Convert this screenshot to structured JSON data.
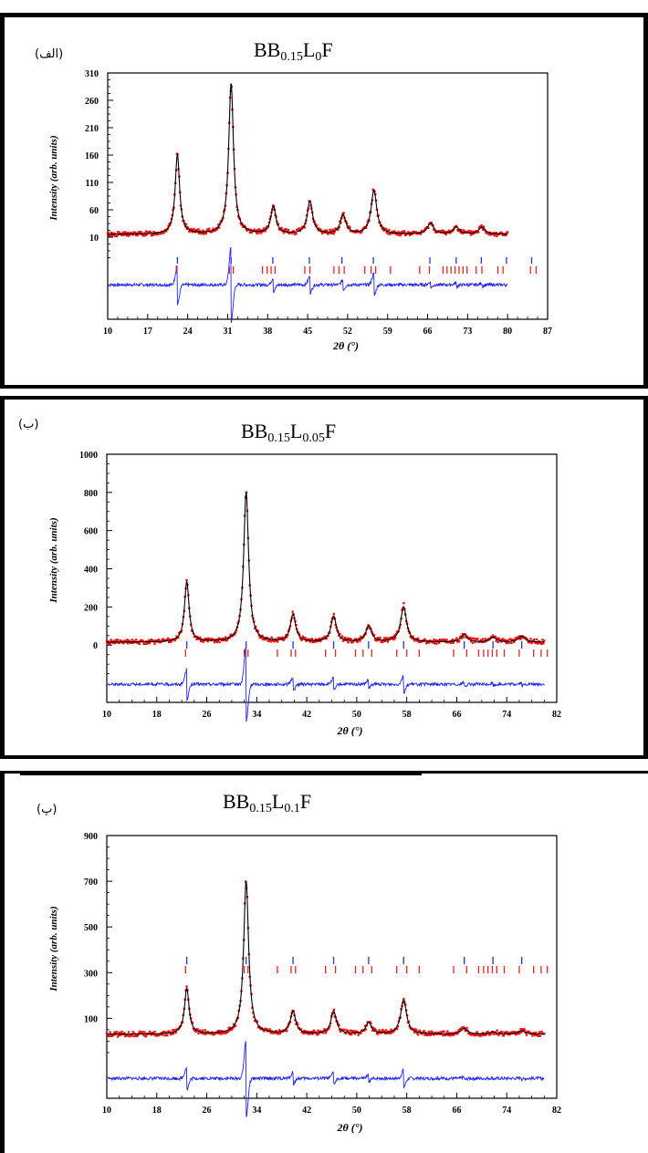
{
  "chart_data": [
    {
      "type": "scatter",
      "tag": "(الف)",
      "title": {
        "base": "BB",
        "s1": "0.15",
        "mid": "L",
        "s2": "0",
        "end": "F"
      },
      "ylabel": "Intensity (arb. units)",
      "xlabel": "2θ (°)",
      "xlim": [
        10,
        87
      ],
      "ylim": [
        -140,
        310
      ],
      "xticks": [
        10,
        17,
        24,
        31,
        38,
        45,
        52,
        59,
        66,
        73,
        80,
        87
      ],
      "yticks": [
        10,
        60,
        110,
        160,
        210,
        260,
        310
      ],
      "data_x_range": [
        10,
        80
      ],
      "background": 15,
      "peaks": [
        {
          "x": 22.2,
          "y": 160
        },
        {
          "x": 31.6,
          "y": 290
        },
        {
          "x": 39.0,
          "y": 65
        },
        {
          "x": 45.4,
          "y": 75
        },
        {
          "x": 51.2,
          "y": 50
        },
        {
          "x": 56.6,
          "y": 95
        },
        {
          "x": 66.5,
          "y": 35
        },
        {
          "x": 71.0,
          "y": 28
        },
        {
          "x": 75.5,
          "y": 28
        }
      ],
      "difference_baseline": -77,
      "bragg_phase1": [
        22.2,
        31.6,
        38.9,
        45.3,
        51.0,
        56.5,
        66.4,
        71.0,
        75.4,
        79.8,
        84.2
      ],
      "bragg_phase2": [
        22.0,
        31.3,
        32.0,
        37.1,
        37.9,
        38.6,
        39.3,
        44.5,
        45.4,
        49.6,
        50.5,
        51.4,
        55.0,
        56.1,
        56.9,
        59.5,
        64.6,
        66.3,
        68.7,
        69.4,
        70.1,
        70.8,
        71.5,
        72.2,
        72.9,
        74.5,
        75.5,
        78.3,
        79.2,
        84.0,
        85.0
      ]
    },
    {
      "type": "scatter",
      "tag": "(ب)",
      "title": {
        "base": "BB",
        "s1": "0.15",
        "mid": "L",
        "s2": "0.05",
        "end": "F"
      },
      "ylabel": "Intensity (arb. units)",
      "xlabel": "2θ (°)",
      "xlim": [
        10,
        82
      ],
      "ylim": [
        -300,
        1000
      ],
      "xticks": [
        10,
        18,
        26,
        34,
        42,
        50,
        58,
        66,
        74,
        82
      ],
      "yticks": [
        0,
        200,
        400,
        600,
        800,
        1000
      ],
      "data_x_range": [
        10,
        80
      ],
      "background": 15,
      "peaks": [
        {
          "x": 22.8,
          "y": 330
        },
        {
          "x": 32.3,
          "y": 800
        },
        {
          "x": 39.8,
          "y": 160
        },
        {
          "x": 46.3,
          "y": 150
        },
        {
          "x": 51.9,
          "y": 100
        },
        {
          "x": 57.5,
          "y": 200
        },
        {
          "x": 67.2,
          "y": 55
        },
        {
          "x": 71.8,
          "y": 40
        },
        {
          "x": 76.4,
          "y": 45
        }
      ],
      "difference_baseline": -205,
      "bragg_phase1": [
        22.8,
        32.3,
        39.8,
        46.3,
        51.9,
        57.5,
        67.2,
        71.8,
        76.4
      ],
      "bragg_phase2": [
        22.6,
        32.0,
        32.6,
        37.3,
        39.5,
        40.2,
        45.0,
        46.6,
        49.8,
        51.0,
        52.4,
        56.4,
        58.0,
        60.0,
        65.5,
        67.6,
        69.5,
        70.3,
        71.0,
        71.7,
        72.4,
        73.6,
        76.0,
        78.3,
        79.5,
        80.5
      ]
    },
    {
      "type": "scatter",
      "tag": "(پ)",
      "title": {
        "base": "BB",
        "s1": "0.15",
        "mid": "L",
        "s2": "0.1",
        "end": "F"
      },
      "ylabel": "Intensity (arb. units)",
      "xlabel": "2θ (°)",
      "xlim": [
        10,
        82
      ],
      "ylim": [
        -250,
        900
      ],
      "xticks": [
        10,
        18,
        26,
        34,
        42,
        50,
        58,
        66,
        74,
        82
      ],
      "yticks": [
        100,
        300,
        500,
        700,
        900
      ],
      "data_x_range": [
        10,
        80
      ],
      "background": 30,
      "peaks": [
        {
          "x": 22.8,
          "y": 230
        },
        {
          "x": 32.3,
          "y": 700
        },
        {
          "x": 39.8,
          "y": 130
        },
        {
          "x": 46.3,
          "y": 130
        },
        {
          "x": 51.9,
          "y": 80
        },
        {
          "x": 57.5,
          "y": 180
        },
        {
          "x": 67.2,
          "y": 55
        },
        {
          "x": 71.8,
          "y": 40
        },
        {
          "x": 76.4,
          "y": 45
        }
      ],
      "difference_baseline": -163,
      "bragg_phase1": [
        22.8,
        32.3,
        39.8,
        46.3,
        51.9,
        57.5,
        67.2,
        71.8,
        76.4
      ],
      "bragg_phase2": [
        22.6,
        32.0,
        32.6,
        37.3,
        39.5,
        40.2,
        45.0,
        46.6,
        49.8,
        51.0,
        52.4,
        56.4,
        58.0,
        60.0,
        65.5,
        67.6,
        69.5,
        70.3,
        71.0,
        71.7,
        72.4,
        73.6,
        76.0,
        78.3,
        79.5,
        80.5
      ]
    }
  ],
  "colors": {
    "observed": "#ee1111",
    "calculated": "#000000",
    "difference": "#2222ee",
    "bragg_phase1": "#2233ee",
    "bragg_phase2": "#ee2222"
  }
}
